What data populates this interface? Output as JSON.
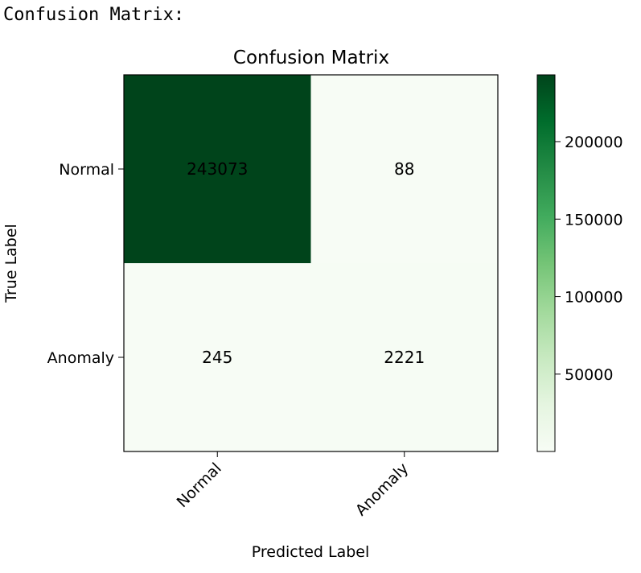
{
  "output": {
    "label": "Confusion Matrix:"
  },
  "colors": {
    "cmap": "Greens",
    "low": "#f7fcf5",
    "high": "#00441b"
  },
  "chart_data": {
    "type": "heatmap",
    "title": "Confusion Matrix",
    "xlabel": "Predicted Label",
    "ylabel": "True Label",
    "x_categories": [
      "Normal",
      "Anomaly"
    ],
    "y_categories": [
      "Normal",
      "Anomaly"
    ],
    "values": [
      [
        243073,
        88
      ],
      [
        245,
        2221
      ]
    ],
    "colorbar": {
      "ticks": [
        50000,
        100000,
        150000,
        200000
      ],
      "range": [
        88,
        243073
      ]
    },
    "grid": false
  }
}
